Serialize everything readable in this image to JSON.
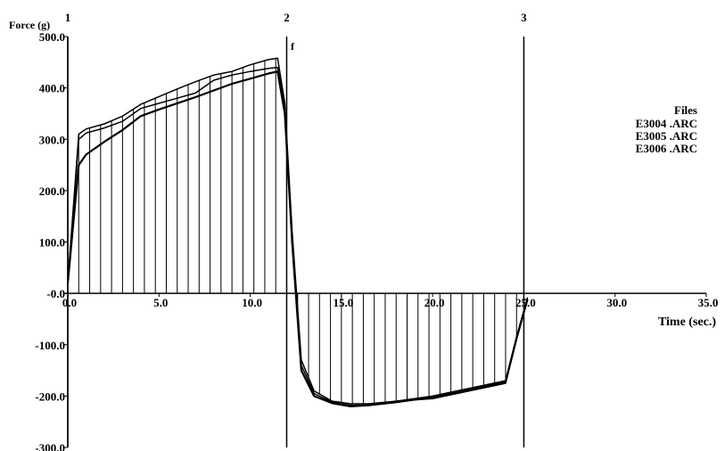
{
  "chart_data": {
    "type": "line",
    "title": "",
    "ylabel": "Force (g)",
    "xlabel": "Time (sec.)",
    "xlim": [
      0,
      35
    ],
    "ylim": [
      -300,
      500
    ],
    "xticks": [
      0,
      5,
      10,
      15,
      20,
      25,
      30,
      35
    ],
    "xtick_labels": [
      "0.0",
      "5.0",
      "10.0",
      "15.0",
      "20.0",
      "25.0",
      "30.0",
      "35.0"
    ],
    "yticks": [
      500,
      400,
      300,
      200,
      100,
      0,
      -100,
      -200,
      -300
    ],
    "ytick_labels": [
      "500.0",
      "400.0",
      "300.0",
      "200.0",
      "100.0",
      "-0.0",
      "-100.0",
      "-200.0",
      "-300.0"
    ],
    "markers": [
      {
        "x": 0,
        "label": "1"
      },
      {
        "x": 12,
        "label": "2"
      },
      {
        "x": 25,
        "label": "3"
      }
    ],
    "annotation": {
      "x": 12,
      "y": 490,
      "text": "f"
    },
    "legend": {
      "title": "Files",
      "position": "right",
      "entries": [
        "E3004 .ARC",
        "E3005 .ARC",
        "E3006 .ARC"
      ]
    },
    "shading": "vertical hatch between primary curve and zero line",
    "series": [
      {
        "name": "E3004 .ARC",
        "x": [
          0,
          0.6,
          1,
          2,
          3,
          4,
          5,
          6,
          7,
          8,
          9,
          10,
          11,
          11.5,
          11.9,
          12.3,
          12.8,
          13.5,
          14.5,
          15.5,
          16.5,
          18,
          20,
          22,
          24,
          24.6,
          25.2
        ],
        "y": [
          20,
          310,
          320,
          330,
          345,
          368,
          383,
          398,
          412,
          425,
          432,
          445,
          455,
          458,
          370,
          120,
          -130,
          -190,
          -210,
          -215,
          -215,
          -210,
          -205,
          -190,
          -175,
          -90,
          -10
        ]
      },
      {
        "name": "E3005 .ARC",
        "x": [
          0,
          0.6,
          1,
          2,
          3,
          4,
          5,
          6,
          7,
          8,
          9,
          10,
          11,
          11.5,
          11.9,
          12.3,
          12.8,
          13.5,
          14.5,
          15.5,
          16.5,
          18,
          20,
          22,
          24,
          24.6,
          25.2
        ],
        "y": [
          20,
          300,
          312,
          322,
          335,
          360,
          370,
          380,
          390,
          415,
          425,
          432,
          438,
          440,
          360,
          110,
          -140,
          -195,
          -212,
          -218,
          -217,
          -210,
          -200,
          -185,
          -170,
          -85,
          -8
        ]
      },
      {
        "name": "E3006 .ARC",
        "x": [
          0,
          0.6,
          1,
          2,
          3,
          4,
          5,
          6,
          7,
          8,
          9,
          10,
          11,
          11.5,
          11.9,
          12.3,
          12.8,
          13.5,
          14.5,
          15.5,
          16.5,
          18,
          20,
          22,
          24,
          24.6,
          25.2
        ],
        "y": [
          20,
          250,
          270,
          295,
          318,
          345,
          358,
          370,
          382,
          395,
          408,
          418,
          428,
          432,
          350,
          100,
          -150,
          -200,
          -214,
          -220,
          -218,
          -212,
          -202,
          -188,
          -172,
          -88,
          -12
        ]
      }
    ]
  }
}
